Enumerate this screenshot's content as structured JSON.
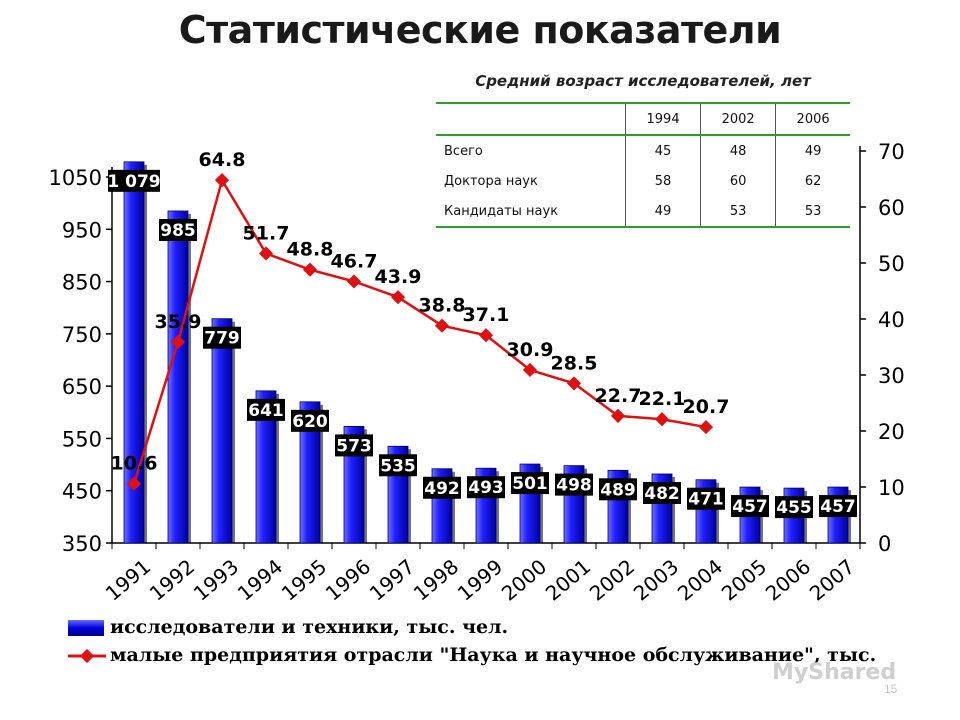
{
  "slide": {
    "title": "Статистические показатели",
    "watermark": "MyShared",
    "page_number": "15"
  },
  "table": {
    "title": "Средний возраст исследователей, лет",
    "columns": [
      "",
      "1994",
      "2002",
      "2006"
    ],
    "rows": [
      {
        "label": "Всего",
        "values": [
          "45",
          "48",
          "49"
        ]
      },
      {
        "label": "Доктора наук",
        "values": [
          "58",
          "60",
          "62"
        ]
      },
      {
        "label": "Кандидаты наук",
        "values": [
          "49",
          "53",
          "53"
        ]
      }
    ]
  },
  "legend": {
    "bars_label": "исследователи и техники, тыс. чел.",
    "line_label": "малые предприятия отрасли \"Наука и научное обслуживание\", тыс."
  },
  "chart_data": {
    "type": "bar",
    "categories": [
      "1991",
      "1992",
      "1993",
      "1994",
      "1995",
      "1996",
      "1997",
      "1998",
      "1999",
      "2000",
      "2001",
      "2002",
      "2003",
      "2004",
      "2005",
      "2006",
      "2007"
    ],
    "left_axis": {
      "range": [
        350,
        1050
      ],
      "ticks": [
        "350",
        "450",
        "550",
        "650",
        "750",
        "850",
        "950",
        "1050"
      ]
    },
    "right_axis": {
      "range": [
        0,
        70
      ],
      "ticks": [
        "0",
        "10",
        "20",
        "30",
        "40",
        "50",
        "60",
        "70"
      ]
    },
    "series": [
      {
        "name": "исследователи и техники, тыс. чел.",
        "type": "bar",
        "axis": "left",
        "color": "#0000dd",
        "values": [
          1079,
          985,
          779,
          641,
          620,
          573,
          535,
          492,
          493,
          501,
          498,
          489,
          482,
          471,
          457,
          455,
          457
        ],
        "labels": [
          "1 079",
          "985",
          "779",
          "641",
          "620",
          "573",
          "535",
          "492",
          "493",
          "501",
          "498",
          "489",
          "482",
          "471",
          "457",
          "455",
          "457"
        ]
      },
      {
        "name": "малые предприятия отрасли \"Наука и научное обслуживание\", тыс.",
        "type": "line",
        "axis": "right",
        "color": "#dd1111",
        "values": [
          10.6,
          35.9,
          64.8,
          51.7,
          48.8,
          46.7,
          43.9,
          38.8,
          37.1,
          30.9,
          28.5,
          22.7,
          22.1,
          20.7,
          null,
          null,
          null
        ],
        "labels": [
          "10.6",
          "35.9",
          "64.8",
          "51.7",
          "48.8",
          "46.7",
          "43.9",
          "38.8",
          "37.1",
          "30.9",
          "28.5",
          "22.7",
          "22.1",
          "20.7",
          null,
          null,
          null
        ]
      }
    ]
  }
}
